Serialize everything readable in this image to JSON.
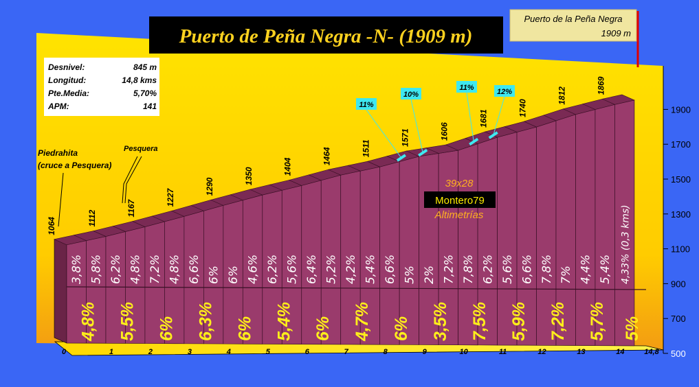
{
  "chart_data": {
    "type": "bar",
    "title": "Puerto de Peña Negra -N- (1909 m)",
    "summit": {
      "name": "Puerto de la Peña Negra",
      "elevation": "1909 m"
    },
    "stats": [
      {
        "label": "Desnivel:",
        "value": "845 m"
      },
      {
        "label": "Longitud:",
        "value": "14,8 kms"
      },
      {
        "label": "Pte.Media:",
        "value": "5,70%"
      },
      {
        "label": "APM:",
        "value": "141"
      }
    ],
    "y_ticks": [
      "500",
      "700",
      "900",
      "1100",
      "1300",
      "1500",
      "1700",
      "1900"
    ],
    "ylim": [
      500,
      1950
    ],
    "x_ticks": [
      "0",
      "1",
      "2",
      "3",
      "4",
      "5",
      "6",
      "7",
      "8",
      "9",
      "10",
      "11",
      "12",
      "13",
      "14",
      "14,8"
    ],
    "segment_grades": [
      "3,8%",
      "5,8%",
      "6,2%",
      "4,8%",
      "7,2%",
      "4,8%",
      "6,6%",
      "6%",
      "6%",
      "4,6%",
      "6,2%",
      "5,6%",
      "6,4%",
      "5,2%",
      "4,2%",
      "5,4%",
      "6,6%",
      "5%",
      "2%",
      "7,2%",
      "7,8%",
      "6,2%",
      "5,6%",
      "6,6%",
      "7,8%",
      "7%",
      "4,4%",
      "5,4%",
      "4,33% (0,3 kms)"
    ],
    "km_grades": [
      "4,8%",
      "5,5%",
      "6%",
      "6,3%",
      "6%",
      "5,4%",
      "6%",
      "4,7%",
      "6%",
      "3,5%",
      "7,5%",
      "5,9%",
      "7,2%",
      "5,7%",
      "5%"
    ],
    "km_elevations": [
      1064,
      1112,
      1167,
      1227,
      1290,
      1350,
      1404,
      1464,
      1511,
      1571,
      1606,
      1681,
      1740,
      1812,
      1869,
      1909
    ],
    "elevation_labels": [
      "1064",
      "1112",
      "1167",
      "1227",
      "1290",
      "1350",
      "1404",
      "1464",
      "1511",
      "1571",
      "1606",
      "1681",
      "1740",
      "1812",
      "1869"
    ],
    "ramps": [
      {
        "label": "11%",
        "km": 8.6
      },
      {
        "label": "10%",
        "km": 9.15
      },
      {
        "label": "11%",
        "km": 10.45
      },
      {
        "label": "12%",
        "km": 10.95
      }
    ],
    "places": [
      {
        "line1": "Piedrahita",
        "line2": "(cruce a Pesquera)"
      },
      {
        "line1": "Pesquera",
        "line2": ""
      }
    ],
    "credits": {
      "scale": "39x28",
      "author": "Montero79",
      "site": "Altimetrías"
    },
    "colors": {
      "background": "#3a66f5",
      "panel_top": "#ffe300",
      "panel_bottom": "#f39c12",
      "bar_front": "#9a3b6c",
      "bar_top": "#7a2a54",
      "title_text": "#ffd21f",
      "ramp_fill": "#3ee8f0"
    }
  }
}
